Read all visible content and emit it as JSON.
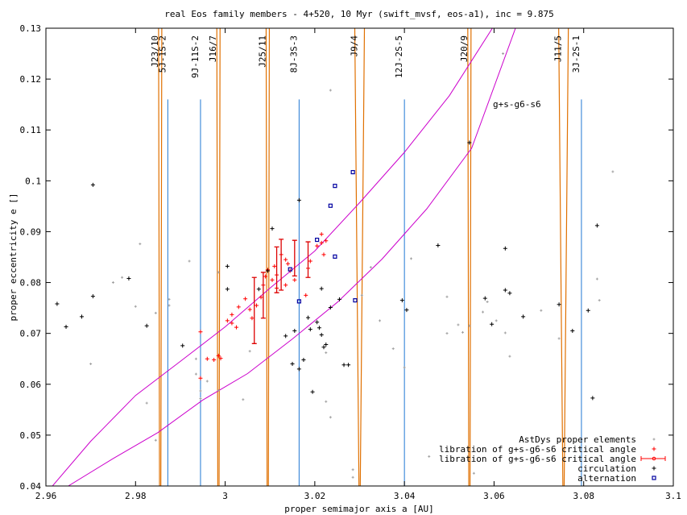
{
  "chart_data": {
    "type": "scatter",
    "title": "real Eos family members - 4+520, 10 Myr (swift_mvsf, eos-a1), inc = 9.875",
    "xlabel": "proper semimajor axis a [AU]",
    "ylabel": "proper eccentricity e []",
    "xlim": [
      2.96,
      3.1
    ],
    "ylim": [
      0.04,
      0.13
    ],
    "xticks": [
      "2.96",
      "2.98",
      "3",
      "3.02",
      "3.04",
      "3.06",
      "3.08",
      "3.1"
    ],
    "yticks": [
      "0.04",
      "0.05",
      "0.06",
      "0.07",
      "0.08",
      "0.09",
      "0.1",
      "0.11",
      "0.12",
      "0.13"
    ],
    "grid": false,
    "legend_position": "bottom-right",
    "colors": {
      "background_points": "#a0a0a0",
      "libration": "#ff0000",
      "libration_errorbar": "#dd0000",
      "circulation": "#000000",
      "alternation": "#0000a0",
      "three_body_resonance": "#1f77d4",
      "two_body_resonance": "#e07000",
      "secular_resonance": "#cc00cc"
    },
    "resonance_labels": [
      {
        "text": "J23/10",
        "a": 2.9855,
        "kind": "two_body"
      },
      {
        "text": "5J-1S-2",
        "a": 2.9872,
        "kind": "three_body"
      },
      {
        "text": "9J-11S-2",
        "a": 2.9945,
        "kind": "three_body"
      },
      {
        "text": "J16/7",
        "a": 2.9985,
        "kind": "two_body"
      },
      {
        "text": "J25/11",
        "a": 3.0095,
        "kind": "two_body"
      },
      {
        "text": "8J-3S-3",
        "a": 3.0165,
        "kind": "three_body"
      },
      {
        "text": "J9/4",
        "a": 3.03,
        "kind": "two_body"
      },
      {
        "text": "12J-2S-5",
        "a": 3.04,
        "kind": "three_body"
      },
      {
        "text": "J20/9",
        "a": 3.0545,
        "kind": "two_body"
      },
      {
        "text": "J11/5",
        "a": 3.0755,
        "kind": "two_body"
      },
      {
        "text": "3J-2S-1",
        "a": 3.0795,
        "kind": "three_body"
      }
    ],
    "secular_label": "g+s-g6-s6",
    "secular_lines": [
      {
        "x": [
          2.96,
          2.97,
          2.98,
          2.99,
          3.0,
          3.01,
          3.02,
          3.03,
          3.04,
          3.05,
          3.06
        ],
        "y": [
          0.0385,
          0.0488,
          0.0578,
          0.0645,
          0.0713,
          0.0789,
          0.0862,
          0.0957,
          0.1056,
          0.1167,
          0.1305
        ]
      },
      {
        "x": [
          2.965,
          2.975,
          2.985,
          2.995,
          3.005,
          3.015,
          3.025,
          3.035,
          3.045,
          3.055,
          3.065
        ],
        "y": [
          0.04,
          0.0454,
          0.0505,
          0.0569,
          0.0621,
          0.0689,
          0.0761,
          0.0846,
          0.0945,
          0.1064,
          0.1305
        ]
      }
    ],
    "series": [
      {
        "name": "AstDys proper elements",
        "marker": "small-plus",
        "points": [
          [
            2.981,
            0.0876
          ],
          [
            2.97,
            0.064
          ],
          [
            2.975,
            0.08
          ],
          [
            2.9825,
            0.0563
          ],
          [
            2.9845,
            0.049
          ],
          [
            2.977,
            0.081
          ],
          [
            2.98,
            0.0753
          ],
          [
            2.992,
            0.0842
          ],
          [
            2.9875,
            0.0767
          ],
          [
            2.9875,
            0.0755
          ],
          [
            2.9935,
            0.065
          ],
          [
            2.9935,
            0.062
          ],
          [
            2.9945,
            0.0587
          ],
          [
            2.996,
            0.0606
          ],
          [
            2.9945,
            0.0572
          ],
          [
            2.9985,
            0.0588
          ],
          [
            3.004,
            0.057
          ],
          [
            3.0055,
            0.0665
          ],
          [
            2.9985,
            0.082
          ],
          [
            3.0225,
            0.0662
          ],
          [
            3.0225,
            0.0566
          ],
          [
            3.0235,
            0.0535
          ],
          [
            3.0235,
            0.1178
          ],
          [
            3.0285,
            0.0417
          ],
          [
            3.0285,
            0.0432
          ],
          [
            3.0305,
            0.0775
          ],
          [
            3.0345,
            0.0725
          ],
          [
            3.0375,
            0.067
          ],
          [
            3.04,
            0.0633
          ],
          [
            3.0415,
            0.0847
          ],
          [
            3.0495,
            0.0772
          ],
          [
            3.0455,
            0.0458
          ],
          [
            3.0495,
            0.07
          ],
          [
            3.052,
            0.0717
          ],
          [
            3.053,
            0.0702
          ],
          [
            3.0545,
            0.0715
          ],
          [
            3.0555,
            0.0425
          ],
          [
            3.0575,
            0.0742
          ],
          [
            3.0585,
            0.0762
          ],
          [
            3.0605,
            0.0725
          ],
          [
            3.0625,
            0.0701
          ],
          [
            3.0635,
            0.0655
          ],
          [
            3.062,
            0.125
          ],
          [
            3.0705,
            0.0745
          ],
          [
            3.0745,
            0.069
          ],
          [
            3.083,
            0.0807
          ],
          [
            3.0865,
            0.1018
          ],
          [
            3.0835,
            0.0765
          ],
          [
            3.0325,
            0.083
          ],
          [
            2.9845,
            0.074
          ]
        ]
      },
      {
        "name": "libration of g+s-g6-s6 critical angle",
        "marker": "plus",
        "points": [
          [
            2.9945,
            0.0612
          ],
          [
            2.9945,
            0.0703
          ],
          [
            2.996,
            0.065
          ],
          [
            2.9975,
            0.0648
          ],
          [
            2.9985,
            0.0656
          ],
          [
            2.999,
            0.0651
          ],
          [
            3.0005,
            0.0725
          ],
          [
            3.0015,
            0.072
          ],
          [
            3.0015,
            0.0737
          ],
          [
            3.0025,
            0.0712
          ],
          [
            3.003,
            0.0752
          ],
          [
            3.0045,
            0.0768
          ],
          [
            3.0055,
            0.0747
          ],
          [
            3.006,
            0.073
          ],
          [
            3.007,
            0.0755
          ],
          [
            3.008,
            0.0771
          ],
          [
            3.0085,
            0.0795
          ],
          [
            3.009,
            0.0812
          ],
          [
            3.0095,
            0.0825
          ],
          [
            3.0105,
            0.0805
          ],
          [
            3.0115,
            0.0789
          ],
          [
            3.0115,
            0.0815
          ],
          [
            3.0125,
            0.0855
          ],
          [
            3.0135,
            0.0845
          ],
          [
            3.014,
            0.0837
          ],
          [
            3.0145,
            0.0823
          ],
          [
            3.0155,
            0.0805
          ],
          [
            3.018,
            0.0775
          ],
          [
            3.0185,
            0.0828
          ],
          [
            3.019,
            0.0842
          ],
          [
            3.0205,
            0.0872
          ],
          [
            3.0215,
            0.0895
          ],
          [
            3.0215,
            0.0878
          ],
          [
            3.0225,
            0.0882
          ],
          [
            3.022,
            0.0855
          ],
          [
            3.0135,
            0.0795
          ],
          [
            3.011,
            0.0832
          ]
        ]
      },
      {
        "name": "libration of g+s-g6-s6 critical angle",
        "marker": "errorbar",
        "points": [
          [
            3.0065,
            0.0745,
            0.0065
          ],
          [
            3.0085,
            0.0775,
            0.0045
          ],
          [
            3.0115,
            0.0825,
            0.0045
          ],
          [
            3.0125,
            0.0835,
            0.005
          ],
          [
            3.0155,
            0.0848,
            0.0035
          ],
          [
            3.0185,
            0.0845,
            0.0035
          ]
        ]
      },
      {
        "name": "circulation",
        "marker": "plus",
        "points": [
          [
            2.9625,
            0.0758
          ],
          [
            2.9645,
            0.0713
          ],
          [
            2.968,
            0.0733
          ],
          [
            2.9705,
            0.0773
          ],
          [
            2.9705,
            0.0992
          ],
          [
            2.9785,
            0.0808
          ],
          [
            2.9825,
            0.0715
          ],
          [
            2.9905,
            0.0676
          ],
          [
            3.0005,
            0.0832
          ],
          [
            3.0005,
            0.0787
          ],
          [
            3.0075,
            0.0787
          ],
          [
            3.0095,
            0.0823
          ],
          [
            3.0105,
            0.0906
          ],
          [
            3.0135,
            0.0695
          ],
          [
            3.015,
            0.064
          ],
          [
            3.0155,
            0.0705
          ],
          [
            3.0165,
            0.063
          ],
          [
            3.0165,
            0.0962
          ],
          [
            3.0175,
            0.0648
          ],
          [
            3.0185,
            0.0731
          ],
          [
            3.019,
            0.0708
          ],
          [
            3.0195,
            0.0585
          ],
          [
            3.0205,
            0.0722
          ],
          [
            3.021,
            0.0711
          ],
          [
            3.0215,
            0.0697
          ],
          [
            3.0215,
            0.0788
          ],
          [
            3.022,
            0.0673
          ],
          [
            3.0225,
            0.0678
          ],
          [
            3.0235,
            0.0751
          ],
          [
            3.0255,
            0.0767
          ],
          [
            3.0265,
            0.0638
          ],
          [
            3.0275,
            0.0638
          ],
          [
            3.0395,
            0.0765
          ],
          [
            3.0405,
            0.0746
          ],
          [
            3.0475,
            0.0873
          ],
          [
            3.0545,
            0.1075
          ],
          [
            3.058,
            0.0769
          ],
          [
            3.0595,
            0.0718
          ],
          [
            3.0625,
            0.0785
          ],
          [
            3.0625,
            0.0867
          ],
          [
            3.0635,
            0.0779
          ],
          [
            3.0665,
            0.0733
          ],
          [
            3.0745,
            0.0757
          ],
          [
            3.0775,
            0.0705
          ],
          [
            3.081,
            0.0745
          ],
          [
            3.082,
            0.0573
          ],
          [
            3.083,
            0.0912
          ]
        ]
      },
      {
        "name": "alternation",
        "marker": "square",
        "points": [
          [
            3.0145,
            0.0826
          ],
          [
            3.0165,
            0.0763
          ],
          [
            3.0205,
            0.0884
          ],
          [
            3.0235,
            0.0951
          ],
          [
            3.0245,
            0.0851
          ],
          [
            3.0245,
            0.099
          ],
          [
            3.0285,
            0.1017
          ],
          [
            3.029,
            0.0765
          ]
        ]
      }
    ]
  }
}
